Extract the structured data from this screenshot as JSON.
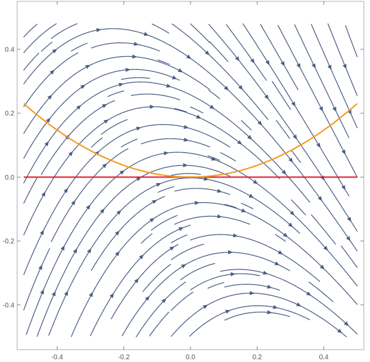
{
  "chart_data": {
    "type": "streamplot",
    "title": "",
    "xlabel": "",
    "ylabel": "",
    "xlim": [
      -0.52,
      0.52
    ],
    "ylim": [
      -0.54,
      0.55
    ],
    "x_ticks": [
      -0.4,
      -0.2,
      0.0,
      0.2,
      0.4
    ],
    "x_tick_labels": [
      "-0.4",
      "-0.2",
      "0.0",
      "0.2",
      "0.4"
    ],
    "y_ticks": [
      -0.4,
      -0.2,
      0.0,
      0.2,
      0.4
    ],
    "y_tick_labels": [
      "-0.4",
      "-0.2",
      "0.0",
      "0.2",
      "0.4"
    ],
    "vector_field": {
      "dx": "1",
      "dy": "-4*x - 2*y"
    },
    "stream_color": "#4a5e85",
    "curves": [
      {
        "kind": "horizontal-line",
        "y": 0.0,
        "x_range": [
          -0.5,
          0.5
        ],
        "color": "#e0222e"
      },
      {
        "kind": "parabola",
        "formula": "y = 0.92*x^2",
        "x_range": [
          -0.5,
          0.5
        ],
        "color": "#f39a1e"
      }
    ],
    "frame": true,
    "grid": false,
    "legend": "none"
  }
}
